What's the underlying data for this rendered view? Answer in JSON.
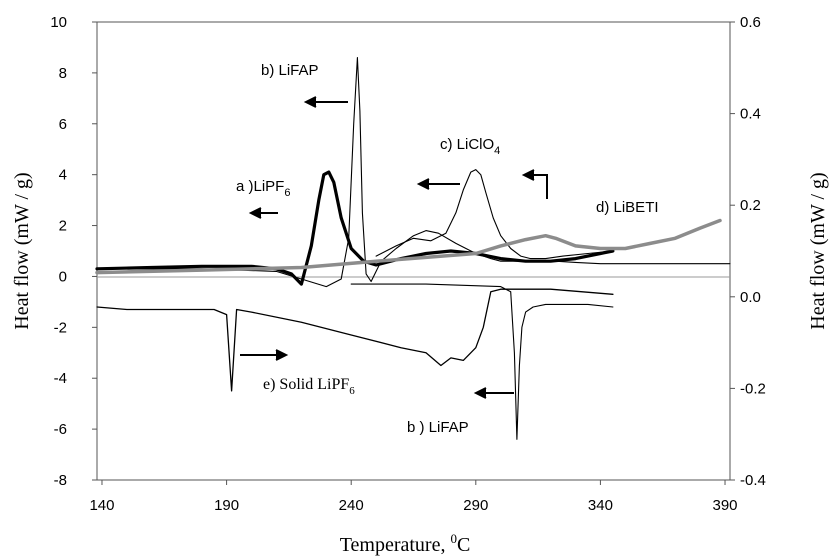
{
  "chart_data": {
    "type": "line",
    "xlabel": "Temperature, ",
    "xlabel_sup": "0",
    "xlabel_unit": "C",
    "ylabel_left": "Heat flow (mW / g)",
    "ylabel_right": "Heat flow (mW / g)",
    "xlim": [
      138,
      392
    ],
    "xticks": [
      140,
      190,
      240,
      290,
      340,
      390
    ],
    "ylim_left": [
      -8,
      10
    ],
    "yticks_left": [
      -8,
      -6,
      -4,
      -2,
      0,
      2,
      4,
      6,
      8,
      10
    ],
    "ylim_right": [
      -0.4,
      0.6
    ],
    "yticks_right": [
      "-0.4",
      "-0.2",
      "0.0",
      "0.2",
      "0.4",
      "0.6"
    ],
    "grid": false,
    "legend": "none",
    "colors": {
      "black": "#000000",
      "gray": "#8c8c8c"
    },
    "series": [
      {
        "key": "a",
        "axis": "left",
        "color": "#000000",
        "width": 3.2,
        "x": [
          138,
          160,
          180,
          200,
          210,
          216,
          220,
          224,
          227,
          229,
          231,
          233,
          236,
          240,
          245,
          250,
          260,
          270,
          280,
          290,
          300,
          310,
          320,
          330,
          340,
          345
        ],
        "y": [
          0.3,
          0.35,
          0.4,
          0.4,
          0.3,
          0.1,
          -0.3,
          1.2,
          3.0,
          4.0,
          4.1,
          3.7,
          2.3,
          1.1,
          0.6,
          0.45,
          0.7,
          0.9,
          1.0,
          0.9,
          0.7,
          0.6,
          0.6,
          0.7,
          0.9,
          1.0
        ]
      },
      {
        "key": "b",
        "axis": "left",
        "color": "#000000",
        "width": 1.1,
        "x": [
          138,
          180,
          210,
          220,
          230,
          236,
          239,
          241,
          242.5,
          243.5,
          244.5,
          246,
          248,
          252,
          258,
          265,
          270,
          275,
          282,
          290,
          296,
          300,
          306,
          310,
          316,
          322,
          330,
          340,
          360,
          392
        ],
        "y": [
          0.3,
          0.3,
          0.2,
          -0.1,
          -0.4,
          -0.1,
          1.5,
          6.0,
          8.6,
          6.5,
          2.5,
          0.1,
          -0.2,
          0.6,
          1.1,
          1.6,
          1.8,
          1.7,
          1.3,
          0.9,
          0.7,
          0.6,
          0.6,
          0.6,
          0.6,
          0.6,
          0.55,
          0.5,
          0.5,
          0.5
        ]
      },
      {
        "key": "c",
        "axis": "left",
        "color": "#000000",
        "width": 1.1,
        "x": [
          250,
          258,
          265,
          272,
          278,
          282,
          285,
          288,
          290,
          292,
          294,
          297,
          300,
          304,
          308,
          312,
          318,
          325,
          335,
          345
        ],
        "y": [
          0.8,
          1.2,
          1.5,
          1.4,
          1.7,
          2.5,
          3.4,
          4.1,
          4.2,
          4.0,
          3.3,
          2.3,
          1.6,
          1.1,
          0.8,
          0.7,
          0.7,
          0.8,
          0.9,
          1.0
        ]
      },
      {
        "key": "d",
        "axis": "left",
        "color": "#8c8c8c",
        "width": 3.5,
        "x": [
          138,
          180,
          220,
          250,
          270,
          290,
          300,
          310,
          318,
          322,
          330,
          340,
          350,
          360,
          370,
          380,
          388
        ],
        "y": [
          0.15,
          0.25,
          0.35,
          0.6,
          0.75,
          0.9,
          1.2,
          1.45,
          1.6,
          1.5,
          1.2,
          1.1,
          1.1,
          1.3,
          1.5,
          1.9,
          2.2
        ]
      },
      {
        "key": "e",
        "axis": "left",
        "color": "#000000",
        "width": 1.3,
        "x": [
          138,
          150,
          170,
          185,
          190,
          192,
          194,
          200,
          220,
          240,
          260,
          270,
          276,
          280,
          285,
          290,
          293,
          296,
          300,
          305,
          320,
          345
        ],
        "y": [
          -1.2,
          -1.3,
          -1.3,
          -1.3,
          -1.5,
          -4.5,
          -1.3,
          -1.4,
          -1.8,
          -2.3,
          -2.8,
          -3.0,
          -3.5,
          -3.2,
          -3.3,
          -2.8,
          -2.0,
          -0.6,
          -0.5,
          -0.5,
          -0.5,
          -0.7
        ]
      },
      {
        "key": "b2",
        "axis": "left",
        "color": "#000000",
        "width": 1.1,
        "x": [
          240,
          270,
          300,
          304,
          305.5,
          306.5,
          307.5,
          308.5,
          310,
          313,
          318,
          325,
          335,
          345
        ],
        "y": [
          -0.3,
          -0.3,
          -0.4,
          -0.6,
          -3.0,
          -6.4,
          -3.5,
          -2.0,
          -1.4,
          -1.2,
          -1.1,
          -1.1,
          -1.1,
          -1.2
        ]
      }
    ],
    "annotations": {
      "a": {
        "pre": "a )LiPF",
        "sub": "6"
      },
      "b": {
        "text": "b)  LiFAP"
      },
      "c": {
        "pre": "c)  LiClO",
        "sub": "4"
      },
      "d": {
        "text": "d)  LiBETI"
      },
      "e_label": {
        "pre": "e)   Solid LiPF",
        "sub": "6"
      },
      "b2": {
        "text": "b ) LiFAP"
      }
    }
  }
}
